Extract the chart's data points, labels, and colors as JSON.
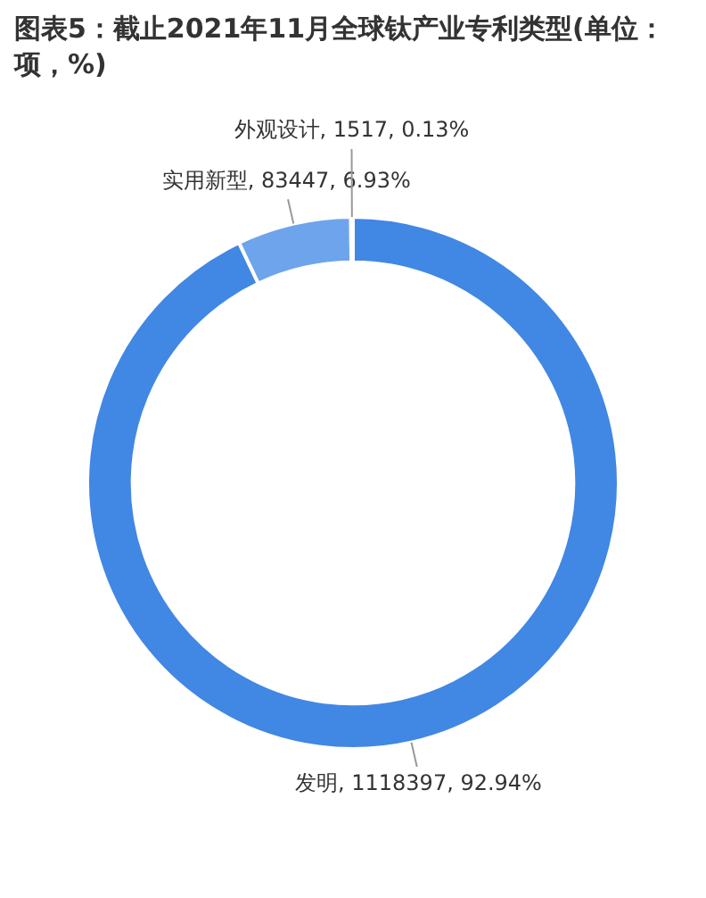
{
  "chart_data": {
    "type": "donut",
    "title": "图表5：截止2021年11月全球钛产业专利类型(单位：项，%)",
    "categories": [
      "发明",
      "实用新型",
      "外观设计"
    ],
    "values": [
      1118397,
      83447,
      1517
    ],
    "value_labels": [
      "1118397, 92.94%",
      "83447, 6.93%",
      "1517, 0.13%"
    ],
    "colors": [
      "#4187e4",
      "#6ea4ec",
      "#a9c9f4"
    ],
    "legend": false
  }
}
